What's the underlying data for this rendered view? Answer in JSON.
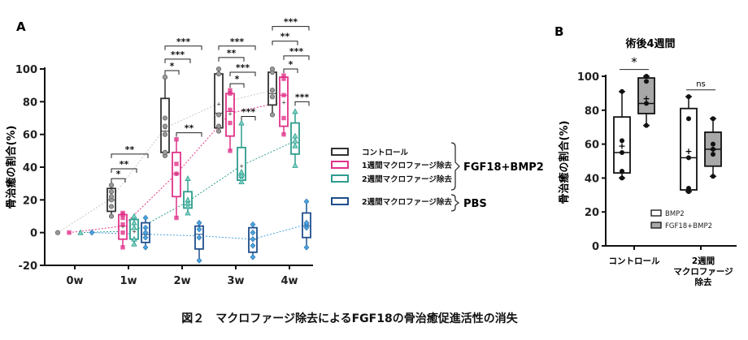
{
  "caption": "図２　マクロファージ除去によるFGF18の骨治癒促進活性の消失",
  "colors": {
    "control": "#333333",
    "control_pt": "#9a9a9a",
    "pink": "#e0338a",
    "teal": "#2e9d8e",
    "blue": "#1f4e8c",
    "blue_pt": "#4aa3df",
    "gray_box": "#a8a8a8"
  },
  "chart_data": [
    {
      "panel": "A",
      "type": "box",
      "ylabel": "骨治癒の割合(%)",
      "ylim": [
        -20,
        100
      ],
      "yticks": [
        "-20",
        "0",
        "20",
        "40",
        "60",
        "80",
        "100"
      ],
      "categories": [
        "0w",
        "1w",
        "2w",
        "3w",
        "4w"
      ],
      "legend": {
        "items": [
          "コントロール",
          "1週間マクロファージ除去",
          "2週間マクロファージ除去",
          "2週間マクロファージ除去"
        ],
        "groups": [
          "FGF18+BMP2",
          "PBS"
        ],
        "placement": "right"
      },
      "series": [
        {
          "name": "コントロール",
          "color_key": "control",
          "boxes": [
            {
              "min": 0,
              "q1": 0,
              "median": 0,
              "q3": 0,
              "max": 0,
              "mean": 0,
              "points": [
                0
              ]
            },
            {
              "min": 10,
              "q1": 13,
              "median": 20,
              "q3": 27,
              "max": 29,
              "mean": 21,
              "points": [
                10,
                16,
                20,
                22,
                25,
                29
              ]
            },
            {
              "min": 47,
              "q1": 49,
              "median": 62,
              "q3": 82,
              "max": 95,
              "mean": 64,
              "points": [
                47,
                49,
                60,
                65,
                70,
                95
              ]
            },
            {
              "min": 62,
              "q1": 64,
              "median": 73,
              "q3": 97,
              "max": 100,
              "mean": 79,
              "points": [
                62,
                65,
                72,
                97,
                100
              ]
            },
            {
              "min": 72,
              "q1": 78,
              "median": 85,
              "q3": 98,
              "max": 100,
              "mean": 87,
              "points": [
                72,
                83,
                87,
                98,
                100
              ]
            }
          ]
        },
        {
          "name": "1週間マクロファージ除去",
          "color_key": "pink",
          "boxes": [
            {
              "min": 0,
              "q1": 0,
              "median": 0,
              "q3": 0,
              "max": 0,
              "mean": 0,
              "points": [
                0
              ]
            },
            {
              "min": -9,
              "q1": -4,
              "median": 4,
              "q3": 11,
              "max": 12,
              "mean": 4,
              "points": [
                -9,
                0,
                5,
                9,
                11,
                12
              ]
            },
            {
              "min": 9,
              "q1": 22,
              "median": 36,
              "q3": 49,
              "max": 57,
              "mean": 36,
              "points": [
                9,
                36,
                42,
                57
              ]
            },
            {
              "min": 50,
              "q1": 59,
              "median": 74,
              "q3": 85,
              "max": 87,
              "mean": 73,
              "points": [
                50,
                67,
                75,
                85,
                87
              ]
            },
            {
              "min": 60,
              "q1": 65,
              "median": 84,
              "q3": 95,
              "max": 96,
              "mean": 80,
              "points": [
                60,
                70,
                84,
                94,
                96
              ]
            }
          ]
        },
        {
          "name": "2週間マクロファージ除去",
          "color_key": "teal",
          "boxes": [
            {
              "min": 0,
              "q1": 0,
              "median": 0,
              "q3": 0,
              "max": 0,
              "mean": 0,
              "points": [
                0
              ]
            },
            {
              "min": -7,
              "q1": -4,
              "median": 2,
              "q3": 8,
              "max": 10,
              "mean": 1,
              "points": [
                -7,
                -4,
                3,
                6,
                10
              ]
            },
            {
              "min": 12,
              "q1": 15,
              "median": 17,
              "q3": 25,
              "max": 33,
              "mean": 19,
              "points": [
                12,
                16,
                18,
                20,
                33
              ]
            },
            {
              "min": 31,
              "q1": 32,
              "median": 35,
              "q3": 52,
              "max": 67,
              "mean": 41,
              "points": [
                31,
                33,
                35,
                37,
                67
              ]
            },
            {
              "min": 41,
              "q1": 48,
              "median": 55,
              "q3": 67,
              "max": 74,
              "mean": 56,
              "points": [
                41,
                53,
                56,
                59,
                74
              ]
            }
          ]
        },
        {
          "name": "2週間マクロファージ除去 (PBS)",
          "color_key": "blue",
          "boxes": [
            {
              "min": 0,
              "q1": 0,
              "median": 0,
              "q3": 0,
              "max": 0,
              "mean": 0,
              "points": [
                0
              ]
            },
            {
              "min": -9,
              "q1": -6,
              "median": -1,
              "q3": 6,
              "max": 9,
              "mean": -1,
              "points": [
                -9,
                -3,
                0,
                3,
                9
              ]
            },
            {
              "min": -17,
              "q1": -10,
              "median": -1,
              "q3": 4,
              "max": 6,
              "mean": -2,
              "points": [
                -17,
                -3,
                2,
                6
              ]
            },
            {
              "min": -15,
              "q1": -12,
              "median": -4,
              "q3": 3,
              "max": 5,
              "mean": -4,
              "points": [
                -15,
                -8,
                -4,
                0,
                5
              ]
            },
            {
              "min": -9,
              "q1": -3,
              "median": 4,
              "q3": 12,
              "max": 19,
              "mean": 5,
              "points": [
                -9,
                3,
                5,
                6,
                19
              ]
            }
          ]
        }
      ],
      "significance": [
        {
          "week": 1,
          "from": 0,
          "to": 1,
          "y": 33,
          "label": "*"
        },
        {
          "week": 1,
          "from": 0,
          "to": 2,
          "y": 39,
          "label": "**"
        },
        {
          "week": 1,
          "from": 0,
          "to": 3,
          "y": 48,
          "label": "**"
        },
        {
          "week": 2,
          "from": 0,
          "to": 1,
          "y": 99,
          "label": "*"
        },
        {
          "week": 2,
          "from": 0,
          "to": 2,
          "y": 106,
          "label": "***"
        },
        {
          "week": 2,
          "from": 0,
          "to": 3,
          "y": 114,
          "label": "***"
        },
        {
          "week": 2,
          "from": 1,
          "to": 3,
          "y": 61,
          "label": "**"
        },
        {
          "week": 3,
          "from": 0,
          "to": 2,
          "y": 107,
          "label": "**"
        },
        {
          "week": 3,
          "from": 0,
          "to": 3,
          "y": 114,
          "label": "***"
        },
        {
          "week": 3,
          "from": 1,
          "to": 2,
          "y": 91,
          "label": "*"
        },
        {
          "week": 3,
          "from": 1,
          "to": 3,
          "y": 98,
          "label": "***"
        },
        {
          "week": 3,
          "from": 2,
          "to": 3,
          "y": 71,
          "label": "***"
        },
        {
          "week": 4,
          "from": 0,
          "to": 3,
          "y": 126,
          "label": "***"
        },
        {
          "week": 4,
          "from": 0,
          "to": 2,
          "y": 117,
          "label": "**"
        },
        {
          "week": 4,
          "from": 1,
          "to": 3,
          "y": 108,
          "label": "***"
        },
        {
          "week": 4,
          "from": 1,
          "to": 2,
          "y": 100,
          "label": "*"
        },
        {
          "week": 4,
          "from": 2,
          "to": 3,
          "y": 80,
          "label": "***"
        }
      ]
    },
    {
      "panel": "B",
      "type": "box",
      "title": "術後4週間",
      "ylabel": "骨治癒の割合(%)",
      "ylim": [
        0,
        100
      ],
      "yticks": [
        "0",
        "20",
        "40",
        "60",
        "80",
        "100"
      ],
      "categories": [
        [
          "コントロール"
        ],
        [
          "2週間",
          "マクロファージ",
          "除去"
        ]
      ],
      "legend": {
        "items": [
          "BMP2",
          "FGF18+BMP2"
        ],
        "placement": "bottom-right"
      },
      "series": [
        {
          "name": "BMP2",
          "fill": "#ffffff",
          "boxes": [
            {
              "min": 40,
              "q1": 43,
              "median": 55,
              "q3": 76,
              "max": 91,
              "mean": 59,
              "points": [
                40,
                44,
                55,
                62,
                91
              ]
            },
            {
              "min": 32,
              "q1": 33,
              "median": 52,
              "q3": 81,
              "max": 88,
              "mean": 56,
              "points": [
                32,
                34,
                52,
                75,
                88
              ]
            }
          ]
        },
        {
          "name": "FGF18+BMP2",
          "fill": "#a8a8a8",
          "boxes": [
            {
              "min": 71,
              "q1": 78,
              "median": 84,
              "q3": 99,
              "max": 100,
              "mean": 87,
              "points": [
                71,
                84,
                97,
                100
              ]
            },
            {
              "min": 41,
              "q1": 47,
              "median": 57,
              "q3": 67,
              "max": 75,
              "mean": 57,
              "points": [
                41,
                54,
                57,
                60,
                75
              ]
            }
          ]
        }
      ],
      "significance": [
        {
          "category": 0,
          "y": 104,
          "label": "*"
        },
        {
          "category": 1,
          "y": 92,
          "label": "ns"
        }
      ]
    }
  ]
}
